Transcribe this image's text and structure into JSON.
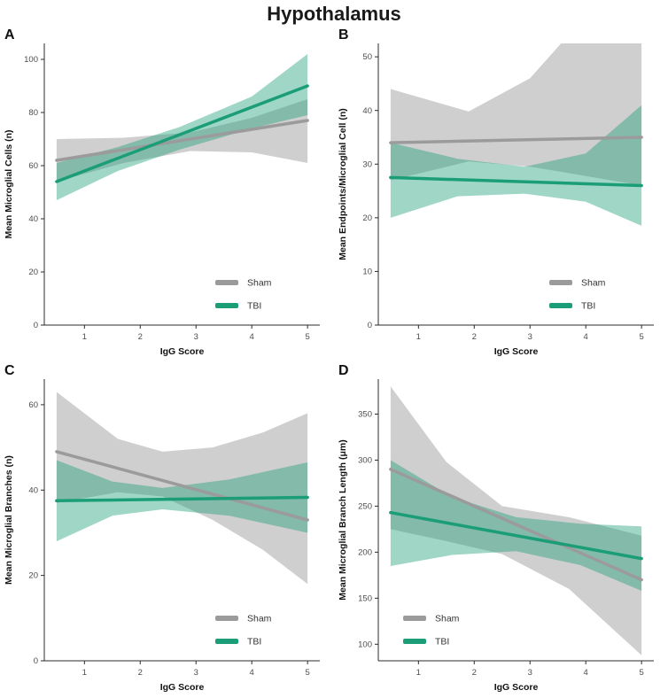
{
  "title": "Hypothalamus",
  "colors": {
    "sham_line": "#9b9b9b",
    "tbi_line": "#1b9e77",
    "sham_band": "#8c8c8c",
    "tbi_band": "#1b9e77",
    "axis": "#2b2b2b",
    "tick_label": "#4d4d4d",
    "axis_title": "#111111",
    "legend_text": "#333333"
  },
  "chart_data": [
    {
      "type": "line",
      "panel_label": "A",
      "xlabel": "IgG Score",
      "ylabel": "Mean Microglial Cells (n)",
      "xlim": [
        0.28,
        5.22
      ],
      "ylim": [
        0,
        106
      ],
      "xticks": [
        1,
        2,
        3,
        4,
        5
      ],
      "yticks": [
        0,
        20,
        40,
        60,
        80,
        100
      ],
      "grid": false,
      "legend_pos": "bottom-right",
      "series": [
        {
          "name": "Sham",
          "role": "sham",
          "line_x": [
            0.5,
            5
          ],
          "line_y": [
            62,
            77
          ],
          "band_x": [
            0.5,
            1.7,
            2.9,
            4,
            5
          ],
          "band_lo": [
            54,
            61,
            65.5,
            65,
            61
          ],
          "band_hi": [
            70,
            70.5,
            72.5,
            78,
            85
          ]
        },
        {
          "name": "TBI",
          "role": "tbi",
          "line_x": [
            0.5,
            5
          ],
          "line_y": [
            54,
            90
          ],
          "band_x": [
            0.5,
            1.6,
            2.7,
            4,
            5
          ],
          "band_lo": [
            47,
            58,
            66,
            74,
            79
          ],
          "band_hi": [
            61,
            67,
            74.5,
            86,
            102
          ]
        }
      ]
    },
    {
      "type": "line",
      "panel_label": "B",
      "xlabel": "IgG Score",
      "ylabel": "Mean Endpoints/Microglial Cell (n)",
      "xlim": [
        0.28,
        5.22
      ],
      "ylim": [
        0,
        52.5
      ],
      "xticks": [
        1,
        2,
        3,
        4,
        5
      ],
      "yticks": [
        0,
        10,
        20,
        30,
        40,
        50
      ],
      "grid": false,
      "legend_pos": "bottom-right",
      "series": [
        {
          "name": "Sham",
          "role": "sham",
          "line_x": [
            0.5,
            5
          ],
          "line_y": [
            34,
            35
          ],
          "band_x": [
            0.5,
            1.9,
            3.0,
            3.6,
            5
          ],
          "band_lo": [
            27,
            30.5,
            29.5,
            28.5,
            26
          ],
          "band_hi": [
            44,
            39.8,
            46,
            53,
            62
          ]
        },
        {
          "name": "TBI",
          "role": "tbi",
          "line_x": [
            0.5,
            5
          ],
          "line_y": [
            27.5,
            26
          ],
          "band_x": [
            0.5,
            1.7,
            2.9,
            4,
            5
          ],
          "band_lo": [
            20,
            24,
            24.5,
            23,
            18.5
          ],
          "band_hi": [
            34,
            31,
            29.5,
            32,
            41
          ]
        }
      ]
    },
    {
      "type": "line",
      "panel_label": "C",
      "xlabel": "IgG Score",
      "ylabel": "Mean Microglial Branches (n)",
      "xlim": [
        0.28,
        5.22
      ],
      "ylim": [
        0,
        66
      ],
      "xticks": [
        1,
        2,
        3,
        4,
        5
      ],
      "yticks": [
        0,
        20,
        40,
        60
      ],
      "grid": false,
      "legend_pos": "bottom-right",
      "series": [
        {
          "name": "Sham",
          "role": "sham",
          "line_x": [
            0.5,
            5
          ],
          "line_y": [
            49,
            33
          ],
          "band_x": [
            0.5,
            1.6,
            2.4,
            3.3,
            4.2,
            5
          ],
          "band_lo": [
            37,
            39.5,
            38.5,
            33,
            26,
            18
          ],
          "band_hi": [
            63,
            52,
            49,
            50,
            53.5,
            58
          ]
        },
        {
          "name": "TBI",
          "role": "tbi",
          "line_x": [
            0.5,
            5
          ],
          "line_y": [
            37.5,
            38.3
          ],
          "band_x": [
            0.5,
            1.5,
            2.4,
            3.6,
            5
          ],
          "band_lo": [
            28,
            34,
            35.5,
            34,
            30
          ],
          "band_hi": [
            47,
            42,
            40.5,
            42.5,
            46.5
          ]
        }
      ]
    },
    {
      "type": "line",
      "panel_label": "D",
      "xlabel": "IgG Score",
      "ylabel": "Mean Microglial Branch Length (μm)",
      "xlim": [
        0.28,
        5.22
      ],
      "ylim": [
        82,
        388
      ],
      "xticks": [
        1,
        2,
        3,
        4,
        5
      ],
      "yticks": [
        100,
        150,
        200,
        250,
        300,
        350
      ],
      "grid": false,
      "legend_pos": "bottom-left",
      "series": [
        {
          "name": "Sham",
          "role": "sham",
          "line_x": [
            0.5,
            5
          ],
          "line_y": [
            290,
            170
          ],
          "band_x": [
            0.5,
            1.5,
            2.5,
            3.7,
            5
          ],
          "band_lo": [
            225,
            212,
            198,
            160,
            88
          ],
          "band_hi": [
            380,
            298,
            250,
            238,
            218
          ]
        },
        {
          "name": "TBI",
          "role": "tbi",
          "line_x": [
            0.5,
            5
          ],
          "line_y": [
            243,
            193
          ],
          "band_x": [
            0.5,
            1.6,
            2.75,
            3.9,
            5
          ],
          "band_lo": [
            185,
            197,
            201,
            186,
            158
          ],
          "band_hi": [
            300,
            260,
            238,
            231,
            228
          ]
        }
      ]
    }
  ]
}
